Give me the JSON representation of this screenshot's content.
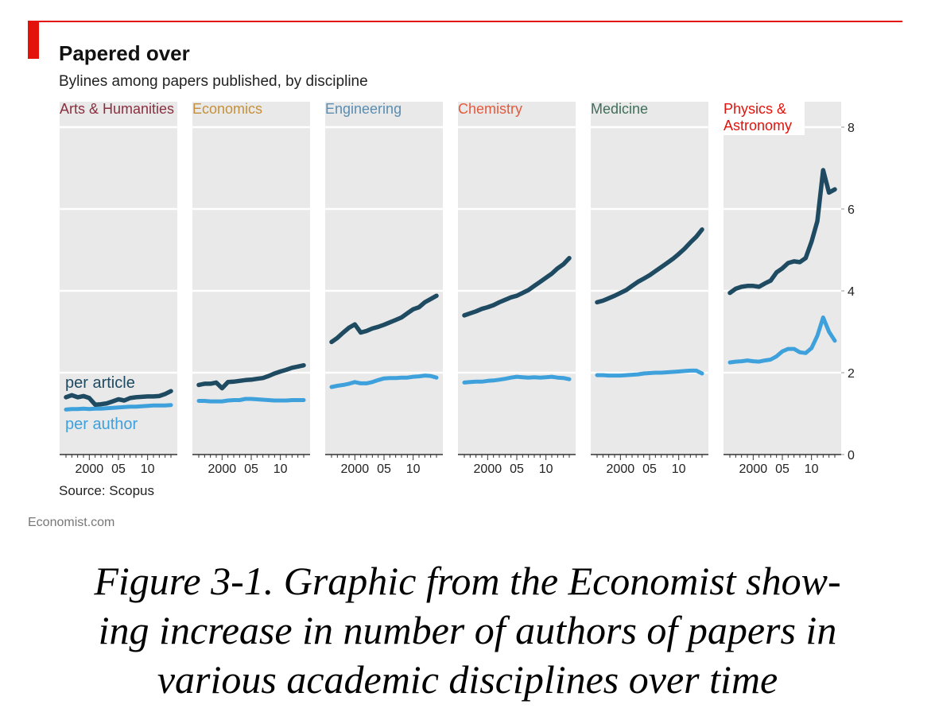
{
  "figure": {
    "title": "Papered over",
    "subtitle": "Bylines among papers published, by discipline",
    "source": "Source: Scopus",
    "publisher": "Economist.com",
    "caption_lines": [
      "Figure 3-1. Graphic from the Economist show-",
      "ing increase in number of authors of papers in",
      "various academic disciplines over time"
    ]
  },
  "colors": {
    "accent_red": "#e3120b",
    "panel_bg": "#e9e9e9",
    "per_article": "#1e4a62",
    "per_author": "#3ea1dc"
  },
  "chart_data": {
    "type": "line",
    "title": "Papered over",
    "subtitle": "Bylines among papers published, by discipline",
    "x": [
      1996,
      1997,
      1998,
      1999,
      2000,
      2001,
      2002,
      2003,
      2004,
      2005,
      2006,
      2007,
      2008,
      2009,
      2010,
      2011,
      2012,
      2013,
      2014
    ],
    "x_tick_labels": [
      "2000",
      "05",
      "10"
    ],
    "x_tick_values": [
      2000,
      2005,
      2010
    ],
    "ylim": [
      0,
      8
    ],
    "y_ticks": [
      "0",
      "2",
      "4",
      "6",
      "8"
    ],
    "series_labels": {
      "per_article": "per article",
      "per_author": "per author"
    },
    "grid": true,
    "panels": [
      {
        "name": "Arts & Humanities",
        "color": "#8b2f3f",
        "per_article": [
          1.4,
          1.45,
          1.4,
          1.43,
          1.38,
          1.22,
          1.23,
          1.25,
          1.3,
          1.35,
          1.32,
          1.38,
          1.4,
          1.41,
          1.42,
          1.42,
          1.43,
          1.48,
          1.55
        ],
        "per_author": [
          1.1,
          1.11,
          1.11,
          1.12,
          1.11,
          1.12,
          1.12,
          1.13,
          1.14,
          1.15,
          1.16,
          1.17,
          1.17,
          1.18,
          1.19,
          1.2,
          1.2,
          1.2,
          1.21
        ]
      },
      {
        "name": "Economics",
        "color": "#c4913a",
        "per_article": [
          1.7,
          1.73,
          1.73,
          1.76,
          1.62,
          1.77,
          1.78,
          1.8,
          1.82,
          1.83,
          1.85,
          1.87,
          1.92,
          1.98,
          2.03,
          2.07,
          2.12,
          2.15,
          2.18
        ],
        "per_author": [
          1.31,
          1.31,
          1.3,
          1.3,
          1.3,
          1.32,
          1.33,
          1.33,
          1.36,
          1.36,
          1.35,
          1.34,
          1.33,
          1.32,
          1.32,
          1.32,
          1.33,
          1.33,
          1.33
        ]
      },
      {
        "name": "Engineering",
        "color": "#5b8db1",
        "per_article": [
          2.75,
          2.85,
          2.98,
          3.1,
          3.18,
          2.98,
          3.02,
          3.08,
          3.12,
          3.17,
          3.23,
          3.29,
          3.35,
          3.45,
          3.55,
          3.6,
          3.72,
          3.8,
          3.88
        ],
        "per_author": [
          1.65,
          1.68,
          1.7,
          1.73,
          1.77,
          1.74,
          1.74,
          1.77,
          1.82,
          1.86,
          1.87,
          1.87,
          1.88,
          1.88,
          1.9,
          1.91,
          1.93,
          1.92,
          1.88
        ]
      },
      {
        "name": "Chemistry",
        "color": "#e35a3c",
        "per_article": [
          3.4,
          3.45,
          3.5,
          3.56,
          3.6,
          3.65,
          3.72,
          3.78,
          3.84,
          3.88,
          3.95,
          4.02,
          4.12,
          4.22,
          4.32,
          4.42,
          4.55,
          4.65,
          4.8
        ],
        "per_author": [
          1.76,
          1.77,
          1.78,
          1.78,
          1.8,
          1.81,
          1.83,
          1.85,
          1.88,
          1.9,
          1.89,
          1.88,
          1.89,
          1.88,
          1.89,
          1.9,
          1.88,
          1.87,
          1.84
        ]
      },
      {
        "name": "Medicine",
        "color": "#3f6e5b",
        "per_article": [
          3.72,
          3.76,
          3.82,
          3.88,
          3.95,
          4.02,
          4.12,
          4.22,
          4.3,
          4.38,
          4.48,
          4.58,
          4.68,
          4.78,
          4.9,
          5.03,
          5.18,
          5.32,
          5.5
        ],
        "per_author": [
          1.94,
          1.94,
          1.93,
          1.93,
          1.93,
          1.94,
          1.95,
          1.96,
          1.98,
          1.99,
          2.0,
          2.0,
          2.01,
          2.02,
          2.03,
          2.04,
          2.05,
          2.05,
          1.98
        ]
      },
      {
        "name": "Physics & Astronomy",
        "name_lines": [
          "Physics &",
          "Astronomy"
        ],
        "color": "#e3120b",
        "per_article": [
          3.95,
          4.05,
          4.1,
          4.12,
          4.12,
          4.1,
          4.18,
          4.25,
          4.45,
          4.55,
          4.68,
          4.72,
          4.7,
          4.8,
          5.2,
          5.7,
          6.95,
          6.4,
          6.48
        ],
        "per_author": [
          2.25,
          2.27,
          2.28,
          2.3,
          2.28,
          2.27,
          2.3,
          2.32,
          2.4,
          2.52,
          2.58,
          2.58,
          2.5,
          2.48,
          2.6,
          2.9,
          3.35,
          3.0,
          2.78
        ]
      }
    ]
  }
}
